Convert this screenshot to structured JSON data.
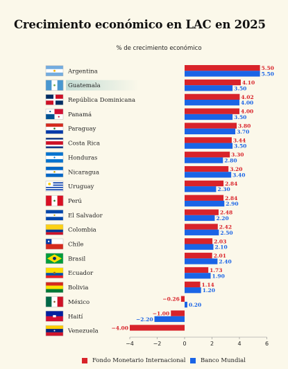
{
  "title": "Crecimiento económico en LAC en 2025",
  "chart_data": {
    "type": "bar",
    "orientation": "horizontal",
    "title": "Crecimiento económico en LAC en 2025",
    "xlabel": "% de crecimiento económico",
    "ylabel": "",
    "xlim": [
      -4,
      6
    ],
    "xticks": [
      -4,
      -2,
      0,
      2,
      4,
      6
    ],
    "categories": [
      "Argentina",
      "Guatemala",
      "República Dominicana",
      "Panamá",
      "Paraguay",
      "Costa Rica",
      "Honduras",
      "Nicaragua",
      "Uruguay",
      "Perú",
      "El Salvador",
      "Colombia",
      "Chile",
      "Brasil",
      "Ecuador",
      "Bolivia",
      "México",
      "Haití",
      "Venezuela"
    ],
    "highlighted_category": "Guatemala",
    "series": [
      {
        "name": "Fondo Monetario Internacional",
        "color": "#d8232a",
        "values": [
          5.5,
          4.1,
          4.02,
          4.0,
          3.8,
          3.44,
          3.3,
          3.2,
          2.84,
          2.84,
          2.48,
          2.42,
          2.03,
          2.01,
          1.73,
          1.14,
          -0.26,
          -1.0,
          -4.0
        ],
        "labels": [
          "5.50",
          "4.10",
          "4.02",
          "4.00",
          "3.80",
          "3.44",
          "3.30",
          "3.20",
          "2.84",
          "2.84",
          "2.48",
          "2.42",
          "2.03",
          "2.01",
          "1.73",
          "1.14",
          "−0.26",
          "−1.00",
          "−4.00"
        ]
      },
      {
        "name": "Banco Mundial",
        "color": "#1a64e6",
        "values": [
          5.5,
          3.5,
          4.0,
          3.5,
          3.7,
          3.5,
          2.8,
          3.4,
          2.3,
          2.9,
          2.2,
          2.5,
          2.1,
          2.4,
          1.9,
          1.2,
          0.2,
          -2.2,
          null
        ],
        "labels": [
          "5.50",
          "3.50",
          "4.00",
          "3.50",
          "3.70",
          "3.50",
          "2.80",
          "3.40",
          "2.30",
          "2.90",
          "2.20",
          "2.50",
          "2.10",
          "2.40",
          "1.90",
          "1.20",
          "0.20",
          "−2.20",
          ""
        ]
      }
    ],
    "legend_position": "bottom",
    "grid": false
  },
  "flags": [
    "argentina-flag-icon",
    "guatemala-flag-icon",
    "dominican-republic-flag-icon",
    "panama-flag-icon",
    "paraguay-flag-icon",
    "costa-rica-flag-icon",
    "honduras-flag-icon",
    "nicaragua-flag-icon",
    "uruguay-flag-icon",
    "peru-flag-icon",
    "el-salvador-flag-icon",
    "colombia-flag-icon",
    "chile-flag-icon",
    "brazil-flag-icon",
    "ecuador-flag-icon",
    "bolivia-flag-icon",
    "mexico-flag-icon",
    "haiti-flag-icon",
    "venezuela-flag-icon"
  ]
}
